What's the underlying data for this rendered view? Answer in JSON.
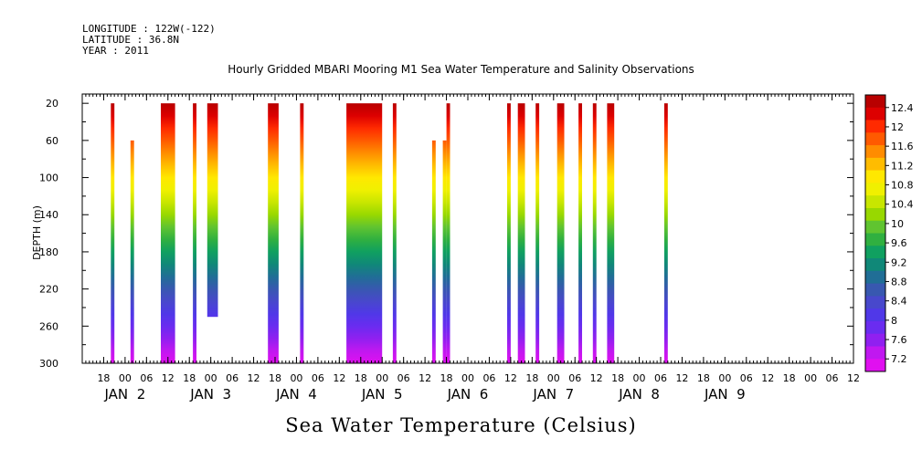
{
  "header": {
    "longitude": "LONGITUDE : 122W(-122)",
    "latitude": "LATITUDE : 36.8N",
    "year": "YEAR : 2011"
  },
  "chart_data": {
    "type": "heatmap",
    "title": "Hourly Gridded MBARI Mooring M1 Sea Water Temperature and Salinity Observations",
    "bottom_title": "Sea Water Temperature (Celsius)",
    "ylabel": "DEPTH (m)",
    "y_inverted": true,
    "ylim": [
      10,
      300
    ],
    "y_ticks": [
      20,
      60,
      100,
      140,
      180,
      220,
      260,
      300
    ],
    "x_unit": "hours since JAN 1 00:00",
    "xlim": [
      12,
      228
    ],
    "x_ticks": [
      {
        "h": 18,
        "label": "18"
      },
      {
        "h": 24,
        "label": "00"
      },
      {
        "h": 30,
        "label": "06"
      },
      {
        "h": 36,
        "label": "12"
      },
      {
        "h": 42,
        "label": "18"
      },
      {
        "h": 48,
        "label": "00"
      },
      {
        "h": 54,
        "label": "06"
      },
      {
        "h": 60,
        "label": "12"
      },
      {
        "h": 66,
        "label": "18"
      },
      {
        "h": 72,
        "label": "00"
      },
      {
        "h": 78,
        "label": "06"
      },
      {
        "h": 84,
        "label": "12"
      },
      {
        "h": 90,
        "label": "18"
      },
      {
        "h": 96,
        "label": "00"
      },
      {
        "h": 102,
        "label": "06"
      },
      {
        "h": 108,
        "label": "12"
      },
      {
        "h": 114,
        "label": "18"
      },
      {
        "h": 120,
        "label": "00"
      },
      {
        "h": 126,
        "label": "06"
      },
      {
        "h": 132,
        "label": "12"
      },
      {
        "h": 138,
        "label": "18"
      },
      {
        "h": 144,
        "label": "00"
      },
      {
        "h": 150,
        "label": "06"
      },
      {
        "h": 156,
        "label": "12"
      },
      {
        "h": 162,
        "label": "18"
      },
      {
        "h": 168,
        "label": "00"
      },
      {
        "h": 174,
        "label": "06"
      },
      {
        "h": 180,
        "label": "12"
      },
      {
        "h": 186,
        "label": "18"
      },
      {
        "h": 192,
        "label": "00"
      },
      {
        "h": 198,
        "label": "06"
      },
      {
        "h": 204,
        "label": "12"
      },
      {
        "h": 210,
        "label": "18"
      },
      {
        "h": 216,
        "label": "00"
      },
      {
        "h": 222,
        "label": "06"
      },
      {
        "h": 228,
        "label": "12"
      }
    ],
    "day_labels": [
      {
        "h": 24,
        "label": "JAN  2"
      },
      {
        "h": 48,
        "label": "JAN  3"
      },
      {
        "h": 72,
        "label": "JAN  4"
      },
      {
        "h": 96,
        "label": "JAN  5"
      },
      {
        "h": 120,
        "label": "JAN  6"
      },
      {
        "h": 144,
        "label": "JAN  7"
      },
      {
        "h": 168,
        "label": "JAN  8"
      },
      {
        "h": 192,
        "label": "JAN  9"
      }
    ],
    "colorbar": {
      "levels": [
        "12.4",
        "12",
        "11.6",
        "11.2",
        "10.8",
        "10.4",
        "10",
        "9.6",
        "9.2",
        "8.8",
        "8.4",
        "8",
        "7.6",
        "7.2"
      ],
      "colors": [
        "#b80000",
        "#dd0000",
        "#ff2a00",
        "#ff5a00",
        "#ff8c00",
        "#ffbc00",
        "#ffe800",
        "#f0f000",
        "#c8e600",
        "#98d800",
        "#60c430",
        "#30b040",
        "#10a060",
        "#108878",
        "#206e96",
        "#3858b0",
        "#4848cc",
        "#5038e8",
        "#6a2cf0",
        "#9020f0",
        "#c018f0",
        "#e010f0"
      ]
    },
    "series": [
      {
        "start": 20,
        "end": 21,
        "depth_top": 20,
        "depth_bottom": 300,
        "surface_temp": 12.4
      },
      {
        "start": 25.5,
        "end": 26.5,
        "depth_top": 60,
        "depth_bottom": 300,
        "surface_temp": 12.4
      },
      {
        "start": 34,
        "end": 38,
        "depth_top": 20,
        "depth_bottom": 300,
        "surface_temp": 12.8
      },
      {
        "start": 43,
        "end": 44,
        "depth_top": 20,
        "depth_bottom": 300,
        "surface_temp": 12.6
      },
      {
        "start": 47,
        "end": 50,
        "depth_top": 20,
        "depth_bottom": 250,
        "surface_temp": 12.6
      },
      {
        "start": 64,
        "end": 67,
        "depth_top": 20,
        "depth_bottom": 300,
        "surface_temp": 12.8
      },
      {
        "start": 73,
        "end": 74,
        "depth_top": 20,
        "depth_bottom": 300,
        "surface_temp": 12.6
      },
      {
        "start": 86,
        "end": 96,
        "depth_top": 20,
        "depth_bottom": 300,
        "surface_temp": 12.8
      },
      {
        "start": 99,
        "end": 100,
        "depth_top": 20,
        "depth_bottom": 300,
        "surface_temp": 12.2
      },
      {
        "start": 110,
        "end": 111,
        "depth_top": 60,
        "depth_bottom": 300,
        "surface_temp": 12.0
      },
      {
        "start": 113,
        "end": 114,
        "depth_top": 60,
        "depth_bottom": 300,
        "surface_temp": 12.0
      },
      {
        "start": 114,
        "end": 115,
        "depth_top": 20,
        "depth_bottom": 300,
        "surface_temp": 12.0
      },
      {
        "start": 131,
        "end": 132,
        "depth_top": 20,
        "depth_bottom": 300,
        "surface_temp": 12.0
      },
      {
        "start": 134,
        "end": 136,
        "depth_top": 20,
        "depth_bottom": 300,
        "surface_temp": 12.0
      },
      {
        "start": 139,
        "end": 140,
        "depth_top": 20,
        "depth_bottom": 300,
        "surface_temp": 12.0
      },
      {
        "start": 145,
        "end": 147,
        "depth_top": 20,
        "depth_bottom": 300,
        "surface_temp": 12.0
      },
      {
        "start": 151,
        "end": 152,
        "depth_top": 20,
        "depth_bottom": 300,
        "surface_temp": 12.0
      },
      {
        "start": 155,
        "end": 156,
        "depth_top": 20,
        "depth_bottom": 300,
        "surface_temp": 12.0
      },
      {
        "start": 159,
        "end": 161,
        "depth_top": 20,
        "depth_bottom": 300,
        "surface_temp": 12.0
      },
      {
        "start": 175,
        "end": 176,
        "depth_top": 20,
        "depth_bottom": 300,
        "surface_temp": 12.0
      }
    ]
  }
}
